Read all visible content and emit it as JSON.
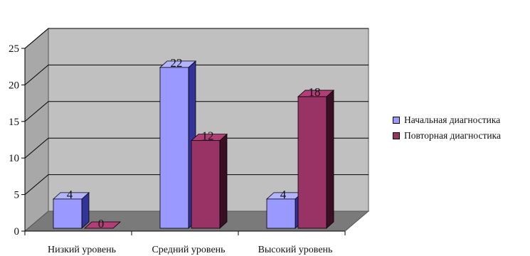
{
  "chart_data": {
    "type": "bar",
    "categories": [
      "Низкий уровень",
      "Средний уровень",
      "Высокий уровень"
    ],
    "series": [
      {
        "name": "Начальная диагностика",
        "values": [
          4,
          22,
          4
        ],
        "color": "#9999ff"
      },
      {
        "name": "Повторная диагностика",
        "values": [
          0,
          12,
          18
        ],
        "color": "#993366"
      }
    ],
    "ylim": [
      0,
      25
    ],
    "yticks": [
      "0",
      "5",
      "10",
      "15",
      "20",
      "25"
    ],
    "data_labels": [
      [
        "4",
        "22",
        "4"
      ],
      [
        "0",
        "12",
        "18"
      ]
    ],
    "grid": true,
    "legend_position": "right",
    "style": "3d"
  }
}
